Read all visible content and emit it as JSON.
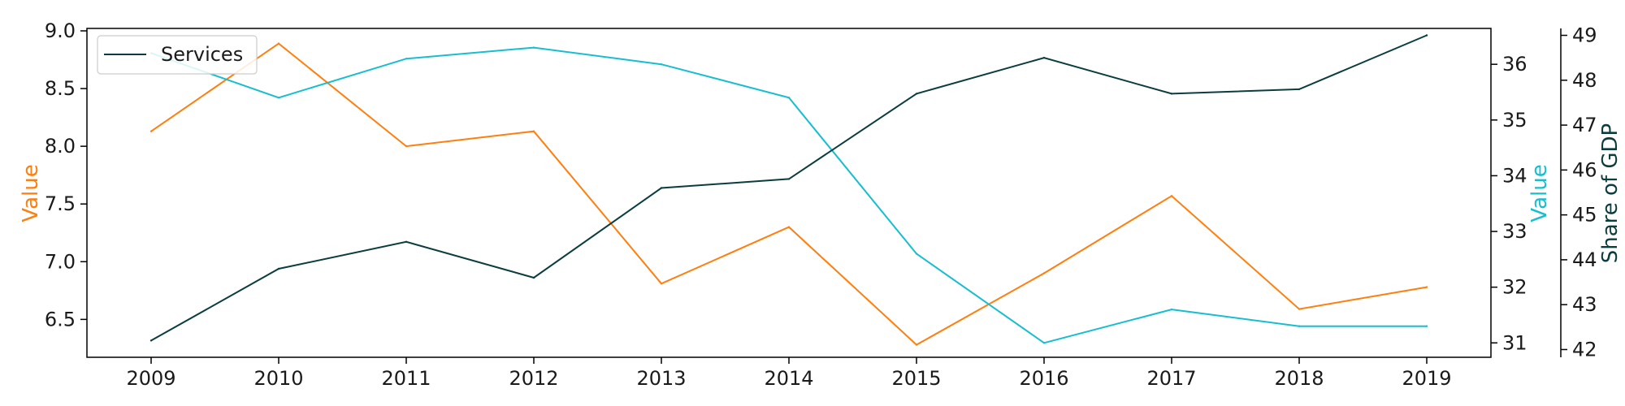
{
  "chart_data": {
    "type": "line",
    "categories": [
      "2009",
      "2010",
      "2011",
      "2012",
      "2013",
      "2014",
      "2015",
      "2016",
      "2017",
      "2018",
      "2019"
    ],
    "series": [
      {
        "values": [
          8.13,
          8.89,
          8.0,
          8.13,
          6.81,
          7.3,
          6.28,
          6.9,
          7.57,
          6.59,
          6.78
        ],
        "axis": "left",
        "color": "#ff7f0e"
      },
      {
        "values": [
          36.2,
          35.4,
          36.1,
          36.3,
          36.0,
          35.4,
          32.6,
          31.0,
          31.6,
          31.3,
          31.3
        ],
        "axis": "right",
        "color": "#17becf"
      },
      {
        "name": "Services",
        "values": [
          42.2,
          43.8,
          44.4,
          43.6,
          45.6,
          45.8,
          47.7,
          48.5,
          47.7,
          47.8,
          49.0
        ],
        "axis": "right2",
        "color": "#0b3d3f"
      }
    ],
    "axes": {
      "left": {
        "label": "Value",
        "ylim": [
          6.2,
          9.0
        ],
        "ticks": [
          "6.5",
          "7.0",
          "7.5",
          "8.0",
          "8.5",
          "9.0"
        ],
        "color": "#ff7f0e"
      },
      "right": {
        "label": "Value",
        "ylim": [
          30.8,
          36.6
        ],
        "ticks": [
          "31",
          "32",
          "33",
          "34",
          "35",
          "36"
        ],
        "color": "#17becf"
      },
      "right2": {
        "label": "Share of GDP",
        "ylim": [
          41.9,
          49.1
        ],
        "ticks": [
          "42",
          "43",
          "44",
          "45",
          "46",
          "47",
          "48",
          "49"
        ],
        "color": "#0b3d3f"
      }
    },
    "grid": false,
    "legend": {
      "placement": "top-left",
      "entries": [
        "Services"
      ]
    }
  }
}
